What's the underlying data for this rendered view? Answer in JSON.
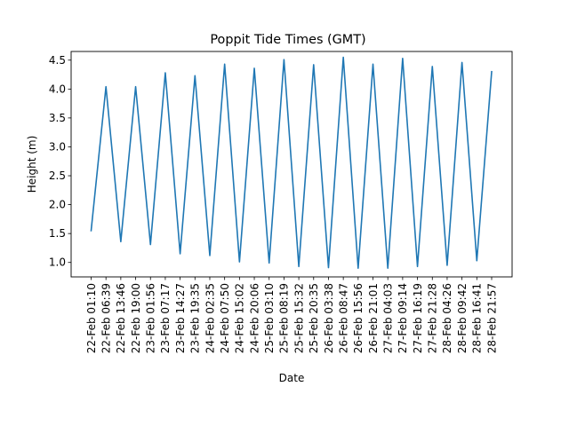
{
  "chart_data": {
    "type": "line",
    "title": "Poppit Tide Times (GMT)",
    "xlabel": "Date",
    "ylabel": "Height (m)",
    "ylim": [
      0.75,
      4.65
    ],
    "yticks": [
      1.0,
      1.5,
      2.0,
      2.5,
      3.0,
      3.5,
      4.0,
      4.5
    ],
    "ytick_labels": [
      "1.0",
      "1.5",
      "2.0",
      "2.5",
      "3.0",
      "3.5",
      "4.0",
      "4.5"
    ],
    "grid": false,
    "legend": "none",
    "line_color": "#1f77b4",
    "categories": [
      "22-Feb 01:10",
      "22-Feb 06:39",
      "22-Feb 13:46",
      "22-Feb 19:00",
      "23-Feb 01:56",
      "23-Feb 07:17",
      "23-Feb 14:27",
      "23-Feb 19:35",
      "24-Feb 02:35",
      "24-Feb 07:50",
      "24-Feb 15:02",
      "24-Feb 20:06",
      "25-Feb 03:10",
      "25-Feb 08:19",
      "25-Feb 15:32",
      "25-Feb 20:35",
      "26-Feb 03:38",
      "26-Feb 08:47",
      "26-Feb 15:56",
      "26-Feb 21:01",
      "27-Feb 04:03",
      "27-Feb 09:14",
      "27-Feb 16:19",
      "27-Feb 21:28",
      "28-Feb 04:26",
      "28-Feb 09:42",
      "28-Feb 16:41",
      "28-Feb 21:57"
    ],
    "series": [
      {
        "values": [
          1.55,
          4.04,
          1.36,
          4.04,
          1.31,
          4.28,
          1.15,
          4.23,
          1.12,
          4.43,
          1.01,
          4.36,
          0.99,
          4.51,
          0.93,
          4.42,
          0.91,
          4.55,
          0.9,
          4.43,
          0.9,
          4.53,
          0.93,
          4.39,
          0.95,
          4.46,
          1.03,
          4.3
        ]
      }
    ]
  }
}
